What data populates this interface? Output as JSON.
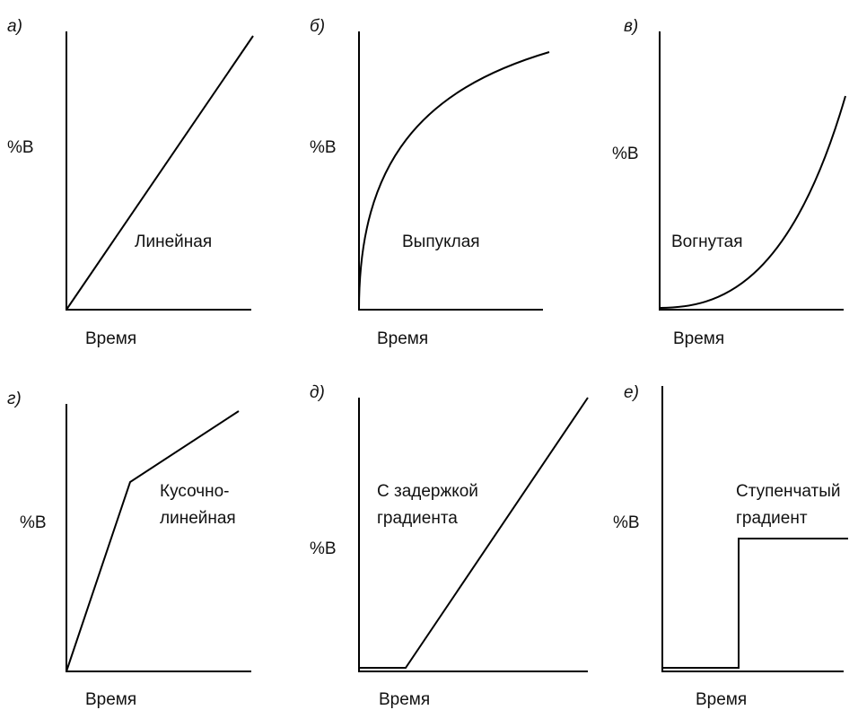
{
  "panels": [
    {
      "letter": "а)",
      "y_label": "%B",
      "x_label": "Время",
      "curve_label": [
        "Линейная"
      ]
    },
    {
      "letter": "б)",
      "y_label": "%B",
      "x_label": "Время",
      "curve_label": [
        "Выпуклая"
      ]
    },
    {
      "letter": "в)",
      "y_label": "%B",
      "x_label": "Время",
      "curve_label": [
        "Вогнутая"
      ]
    },
    {
      "letter": "г)",
      "y_label": "%B",
      "x_label": "Время",
      "curve_label": [
        "Кусочно-",
        "линейная"
      ]
    },
    {
      "letter": "д)",
      "y_label": "%B",
      "x_label": "Время",
      "curve_label": [
        "С задержкой",
        "градиента"
      ]
    },
    {
      "letter": "е)",
      "y_label": "%B",
      "x_label": "Время",
      "curve_label": [
        "Ступенчатый",
        "градиент"
      ]
    }
  ]
}
